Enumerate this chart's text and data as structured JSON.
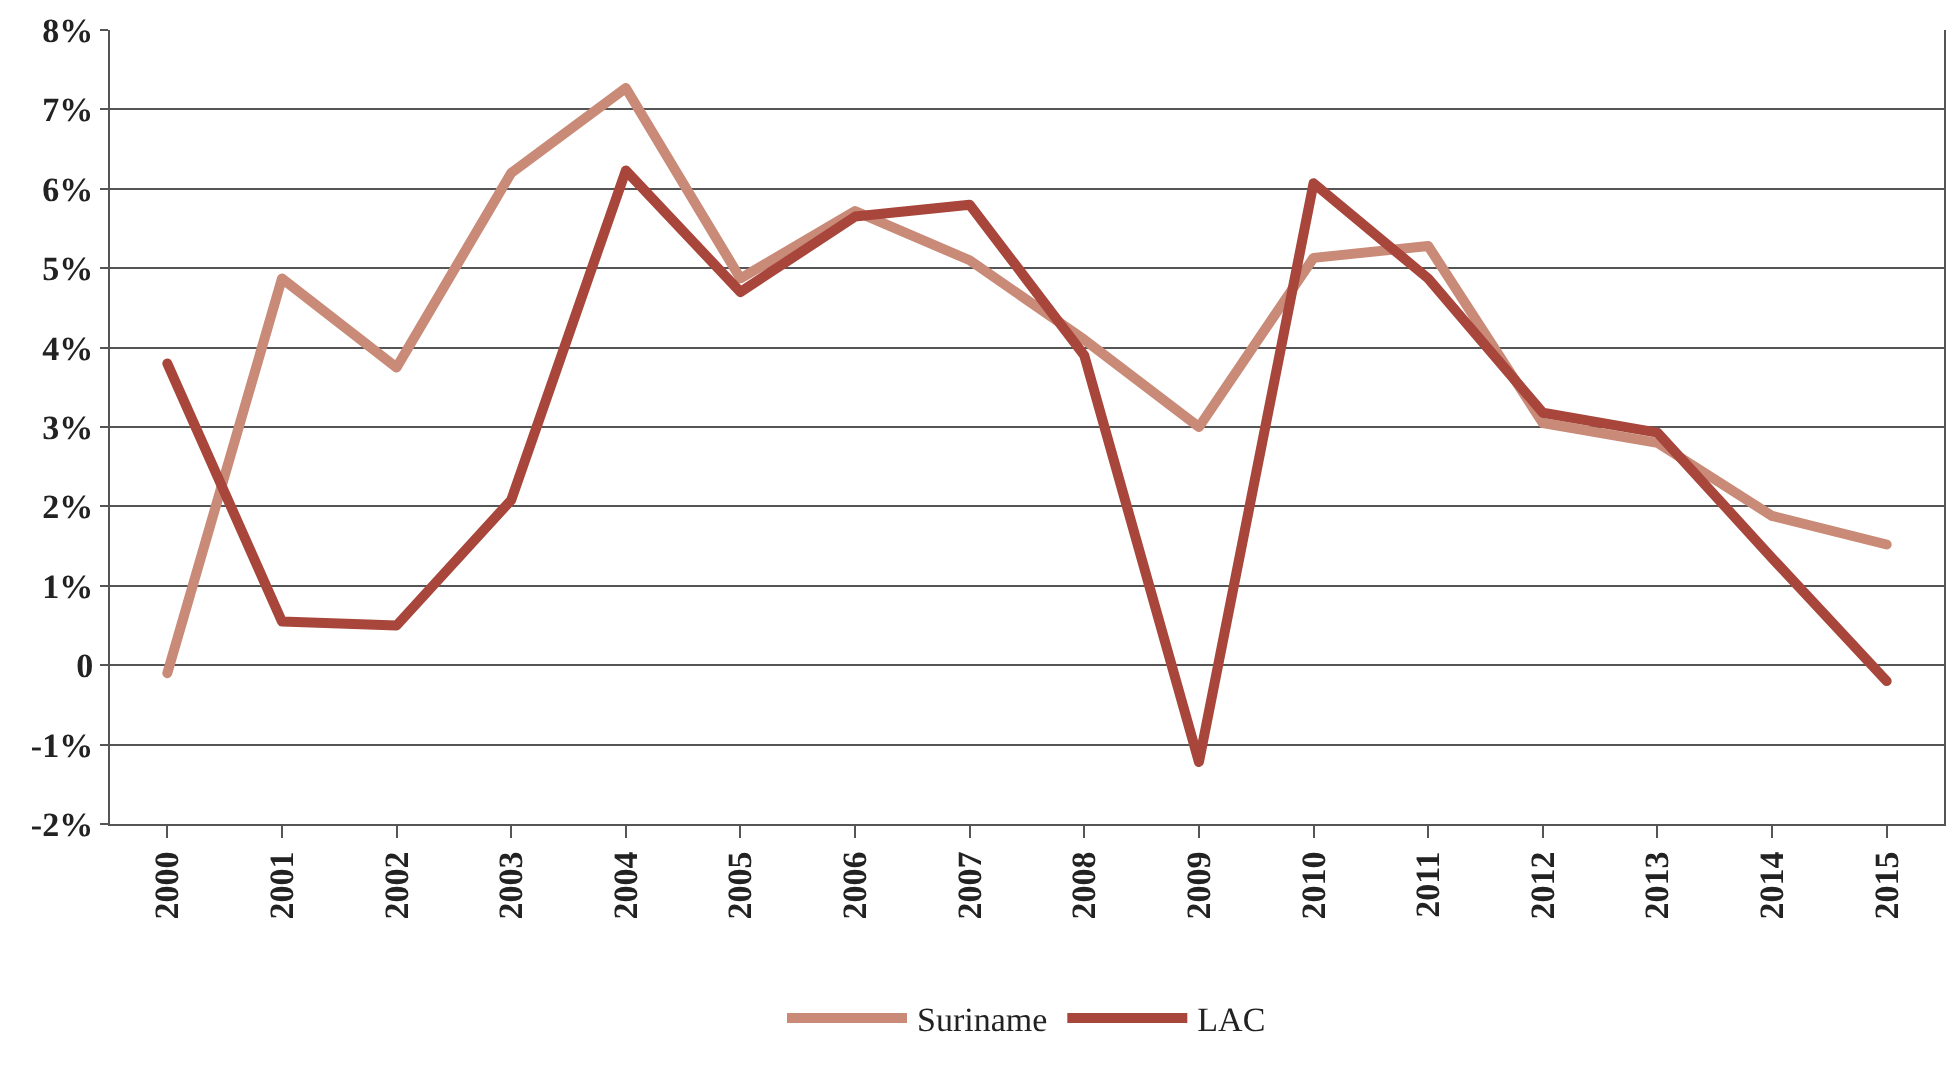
{
  "chart_data": {
    "type": "line",
    "categories": [
      "2000",
      "2001",
      "2002",
      "2003",
      "2004",
      "2005",
      "2006",
      "2007",
      "2008",
      "2009",
      "2010",
      "2011",
      "2012",
      "2013",
      "2014",
      "2015"
    ],
    "series": [
      {
        "name": "Suriname",
        "color": "#c98a78",
        "values": [
          -0.1,
          4.87,
          3.75,
          6.2,
          7.27,
          4.87,
          5.72,
          5.1,
          4.1,
          3.0,
          5.13,
          5.28,
          3.05,
          2.8,
          1.88,
          1.52
        ]
      },
      {
        "name": "LAC",
        "color": "#a8463c",
        "values": [
          3.8,
          0.55,
          0.5,
          2.08,
          6.23,
          4.7,
          5.65,
          5.8,
          3.9,
          -1.22,
          6.07,
          4.87,
          3.18,
          2.93,
          1.35,
          -0.2
        ]
      }
    ],
    "ylim": [
      -2,
      8
    ],
    "yticks": [
      {
        "value": -2,
        "label": "-2%"
      },
      {
        "value": -1,
        "label": "-1%"
      },
      0,
      {
        "value": 1,
        "label": "1%"
      },
      {
        "value": 2,
        "label": "2%"
      },
      {
        "value": 3,
        "label": "3%"
      },
      {
        "value": 4,
        "label": "4%"
      },
      {
        "value": 5,
        "label": "5%"
      },
      {
        "value": 6,
        "label": "6%"
      },
      {
        "value": 7,
        "label": "7%"
      },
      {
        "value": 8,
        "label": "8%"
      }
    ],
    "grid": "y",
    "legend": "bottom",
    "marker": "none",
    "line_style": "solid"
  }
}
